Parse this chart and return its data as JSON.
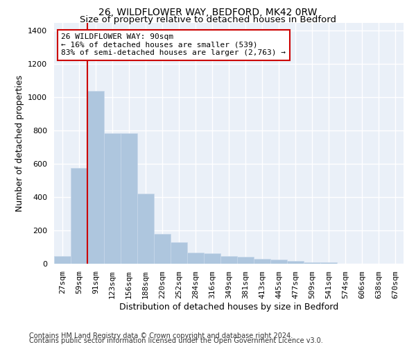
{
  "title1": "26, WILDFLOWER WAY, BEDFORD, MK42 0RW",
  "title2": "Size of property relative to detached houses in Bedford",
  "xlabel": "Distribution of detached houses by size in Bedford",
  "ylabel": "Number of detached properties",
  "bar_color": "#aec6de",
  "bar_edge_color": "#c8d8ea",
  "background_color": "#eaf0f8",
  "grid_color": "#ffffff",
  "annotation_line_color": "#cc0000",
  "annotation_box_color": "#cc0000",
  "categories": [
    "27sqm",
    "59sqm",
    "91sqm",
    "123sqm",
    "156sqm",
    "188sqm",
    "220sqm",
    "252sqm",
    "284sqm",
    "316sqm",
    "349sqm",
    "381sqm",
    "413sqm",
    "445sqm",
    "477sqm",
    "509sqm",
    "541sqm",
    "574sqm",
    "606sqm",
    "638sqm",
    "670sqm"
  ],
  "values": [
    47,
    575,
    1040,
    785,
    785,
    420,
    180,
    128,
    65,
    62,
    47,
    43,
    28,
    27,
    18,
    10,
    10,
    0,
    0,
    0,
    0
  ],
  "annotation_text": "26 WILDFLOWER WAY: 90sqm\n← 16% of detached houses are smaller (539)\n83% of semi-detached houses are larger (2,763) →",
  "footer1": "Contains HM Land Registry data © Crown copyright and database right 2024.",
  "footer2": "Contains public sector information licensed under the Open Government Licence v3.0.",
  "ylim": [
    0,
    1450
  ],
  "yticks": [
    0,
    200,
    400,
    600,
    800,
    1000,
    1200,
    1400
  ],
  "title1_fontsize": 10,
  "title2_fontsize": 9.5,
  "axis_label_fontsize": 9,
  "tick_fontsize": 8,
  "footer_fontsize": 7,
  "ann_fontsize": 8
}
